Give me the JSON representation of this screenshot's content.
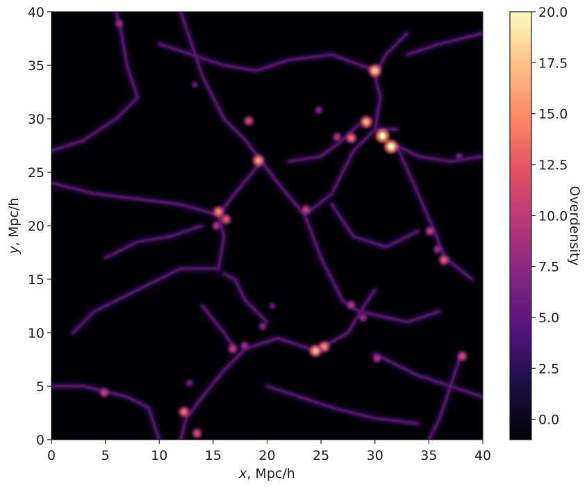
{
  "chart_data": {
    "type": "heatmap",
    "title": "",
    "xlabel": {
      "var": "x",
      "rest": ", Mpc/h"
    },
    "ylabel": {
      "var": "y",
      "rest": ", Mpc/h"
    },
    "xlim": [
      0,
      40
    ],
    "ylim": [
      0,
      40
    ],
    "x_ticks": [
      0,
      5,
      10,
      15,
      20,
      25,
      30,
      35,
      40
    ],
    "y_ticks": [
      0,
      5,
      10,
      15,
      20,
      25,
      30,
      35,
      40
    ],
    "grid": false,
    "colormap": "magma",
    "colorbar": {
      "label": "Overdensity",
      "min": -1.0,
      "max": 20.0,
      "ticks": [
        "0.0",
        "2.5",
        "5.0",
        "7.5",
        "10.0",
        "12.5",
        "15.0",
        "17.5",
        "20.0"
      ]
    },
    "filaments": [
      {
        "points": [
          [
            12,
            40
          ],
          [
            14,
            34
          ],
          [
            16,
            30
          ],
          [
            18,
            28
          ],
          [
            19.5,
            26
          ],
          [
            21,
            24
          ],
          [
            23.5,
            21
          ],
          [
            26,
            23
          ],
          [
            28,
            27
          ],
          [
            30,
            29
          ],
          [
            32,
            29
          ]
        ]
      },
      {
        "points": [
          [
            19.5,
            26
          ],
          [
            17,
            23
          ],
          [
            15.5,
            21
          ],
          [
            16,
            19
          ],
          [
            15.5,
            16
          ]
        ]
      },
      {
        "points": [
          [
            15.5,
            21
          ],
          [
            12,
            22
          ],
          [
            8,
            22.5
          ],
          [
            4,
            23
          ],
          [
            0,
            24
          ]
        ]
      },
      {
        "points": [
          [
            30,
            29
          ],
          [
            30.5,
            32
          ],
          [
            30,
            34
          ],
          [
            31,
            36
          ],
          [
            33,
            38
          ]
        ]
      },
      {
        "points": [
          [
            32,
            27.5
          ],
          [
            34,
            26.5
          ],
          [
            37,
            26
          ],
          [
            40,
            26.5
          ]
        ]
      },
      {
        "points": [
          [
            32,
            27.5
          ],
          [
            34,
            23
          ],
          [
            35.5,
            19.5
          ],
          [
            36.5,
            17
          ],
          [
            39,
            15
          ]
        ]
      },
      {
        "points": [
          [
            23.5,
            21
          ],
          [
            25,
            17
          ],
          [
            27,
            13
          ],
          [
            28.5,
            12
          ],
          [
            33,
            11
          ],
          [
            36,
            12
          ]
        ]
      },
      {
        "points": [
          [
            24.5,
            8.3
          ],
          [
            21,
            9.5
          ],
          [
            18,
            8.5
          ],
          [
            16,
            6.5
          ],
          [
            14,
            4
          ],
          [
            12.5,
            2
          ],
          [
            12,
            0
          ]
        ]
      },
      {
        "points": [
          [
            24.5,
            8.3
          ],
          [
            27.5,
            10
          ],
          [
            29,
            12.5
          ],
          [
            30,
            14
          ]
        ]
      },
      {
        "points": [
          [
            30,
            8
          ],
          [
            34,
            6
          ],
          [
            37,
            5
          ],
          [
            40,
            4
          ]
        ]
      },
      {
        "points": [
          [
            38,
            8
          ],
          [
            37,
            5
          ],
          [
            36,
            2
          ],
          [
            35,
            0
          ]
        ]
      },
      {
        "points": [
          [
            10,
            0
          ],
          [
            9,
            3
          ],
          [
            7,
            4
          ],
          [
            5,
            4.5
          ],
          [
            3,
            5
          ],
          [
            0,
            5
          ]
        ]
      },
      {
        "points": [
          [
            20,
            11
          ],
          [
            18,
            13
          ],
          [
            17,
            15
          ],
          [
            16,
            15.5
          ]
        ]
      },
      {
        "points": [
          [
            22,
            26
          ],
          [
            25,
            26.5
          ],
          [
            27,
            28
          ],
          [
            28.5,
            29.5
          ]
        ]
      },
      {
        "points": [
          [
            6,
            40
          ],
          [
            6.5,
            38
          ],
          [
            7,
            35
          ],
          [
            8,
            32
          ],
          [
            6,
            30
          ],
          [
            3,
            28
          ],
          [
            0,
            27
          ]
        ]
      },
      {
        "points": [
          [
            10,
            37
          ],
          [
            13,
            36
          ],
          [
            16,
            35
          ],
          [
            19,
            34.5
          ],
          [
            22,
            35.5
          ],
          [
            26,
            36
          ],
          [
            30,
            34.5
          ]
        ]
      },
      {
        "points": [
          [
            33,
            36
          ],
          [
            36,
            37
          ],
          [
            40,
            38
          ]
        ]
      },
      {
        "points": [
          [
            2,
            10
          ],
          [
            4,
            12
          ],
          [
            8,
            14
          ],
          [
            12,
            16
          ],
          [
            15.5,
            16
          ]
        ]
      },
      {
        "points": [
          [
            20,
            5
          ],
          [
            23,
            4
          ],
          [
            26,
            3
          ],
          [
            30,
            2
          ],
          [
            34,
            1.5
          ]
        ]
      },
      {
        "points": [
          [
            26,
            22
          ],
          [
            28,
            19
          ],
          [
            31,
            18
          ],
          [
            34,
            19.5
          ]
        ]
      },
      {
        "points": [
          [
            14,
            12.5
          ],
          [
            16,
            10
          ],
          [
            17,
            8.5
          ]
        ]
      },
      {
        "points": [
          [
            5,
            17
          ],
          [
            8,
            18.5
          ],
          [
            11,
            19
          ],
          [
            14,
            20
          ]
        ]
      }
    ],
    "clumps": [
      {
        "x": 30,
        "y": 34.5,
        "overdensity": 18
      },
      {
        "x": 30.7,
        "y": 28.4,
        "overdensity": 20
      },
      {
        "x": 31.5,
        "y": 27.4,
        "overdensity": 20
      },
      {
        "x": 29.2,
        "y": 29.7,
        "overdensity": 17
      },
      {
        "x": 27.8,
        "y": 28.2,
        "overdensity": 14
      },
      {
        "x": 19.2,
        "y": 26.1,
        "overdensity": 16
      },
      {
        "x": 18.3,
        "y": 29.8,
        "overdensity": 12
      },
      {
        "x": 15.5,
        "y": 21.3,
        "overdensity": 15
      },
      {
        "x": 16.2,
        "y": 20.6,
        "overdensity": 13
      },
      {
        "x": 15.3,
        "y": 20,
        "overdensity": 10
      },
      {
        "x": 23.6,
        "y": 21.5,
        "overdensity": 11
      },
      {
        "x": 24.5,
        "y": 8.3,
        "overdensity": 17
      },
      {
        "x": 25.3,
        "y": 8.7,
        "overdensity": 15
      },
      {
        "x": 35.1,
        "y": 19.5,
        "overdensity": 11
      },
      {
        "x": 36.4,
        "y": 16.8,
        "overdensity": 13
      },
      {
        "x": 35.8,
        "y": 17.8,
        "overdensity": 9
      },
      {
        "x": 38.1,
        "y": 7.8,
        "overdensity": 12
      },
      {
        "x": 6.3,
        "y": 38.9,
        "overdensity": 9
      },
      {
        "x": 4.9,
        "y": 4.4,
        "overdensity": 11
      },
      {
        "x": 12.3,
        "y": 2.6,
        "overdensity": 14
      },
      {
        "x": 13.5,
        "y": 0.6,
        "overdensity": 12
      },
      {
        "x": 16.8,
        "y": 8.5,
        "overdensity": 11
      },
      {
        "x": 17.9,
        "y": 8.8,
        "overdensity": 9
      },
      {
        "x": 27.8,
        "y": 12.6,
        "overdensity": 10
      },
      {
        "x": 28.9,
        "y": 11.4,
        "overdensity": 9
      },
      {
        "x": 30.2,
        "y": 7.6,
        "overdensity": 10
      },
      {
        "x": 12.8,
        "y": 5.3,
        "overdensity": 7
      },
      {
        "x": 19.6,
        "y": 10.6,
        "overdensity": 8
      },
      {
        "x": 20.5,
        "y": 12.5,
        "overdensity": 6
      },
      {
        "x": 37.8,
        "y": 26.5,
        "overdensity": 7
      },
      {
        "x": 26.5,
        "y": 28.3,
        "overdensity": 10
      },
      {
        "x": 24.8,
        "y": 30.8,
        "overdensity": 8
      },
      {
        "x": 13.3,
        "y": 33.2,
        "overdensity": 6
      }
    ]
  }
}
